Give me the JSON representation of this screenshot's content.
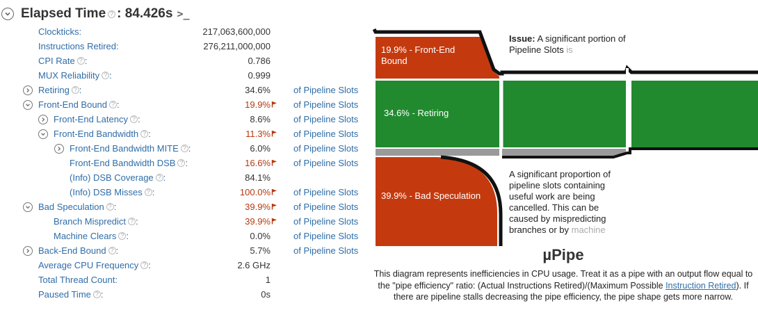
{
  "header": {
    "title": "Elapsed Time",
    "value": ": 84.426s"
  },
  "metrics": [
    {
      "name": "Clockticks:",
      "value": "217,063,600,000",
      "unit": "",
      "indent": 0,
      "expander": "none",
      "help": false,
      "warn": false
    },
    {
      "name": "Instructions Retired:",
      "value": "276,211,000,000",
      "unit": "",
      "indent": 0,
      "expander": "none",
      "help": false,
      "warn": false
    },
    {
      "name": "CPI Rate",
      "value": "0.786",
      "unit": "",
      "indent": 0,
      "expander": "none",
      "help": true,
      "warn": false
    },
    {
      "name": "MUX Reliability",
      "value": "0.999",
      "unit": "",
      "indent": 0,
      "expander": "none",
      "help": true,
      "warn": false
    },
    {
      "name": "Retiring",
      "value": "34.6%",
      "unit": "of Pipeline Slots",
      "indent": 0,
      "expander": "collapsed",
      "help": true,
      "warn": false
    },
    {
      "name": "Front-End Bound",
      "value": "19.9%",
      "unit": "of Pipeline Slots",
      "indent": 0,
      "expander": "expanded",
      "help": true,
      "warn": true
    },
    {
      "name": "Front-End Latency",
      "value": "8.6%",
      "unit": "of Pipeline Slots",
      "indent": 1,
      "expander": "collapsed",
      "help": true,
      "warn": false
    },
    {
      "name": "Front-End Bandwidth",
      "value": "11.3%",
      "unit": "of Pipeline Slots",
      "indent": 1,
      "expander": "expanded",
      "help": true,
      "warn": true
    },
    {
      "name": "Front-End Bandwidth MITE",
      "value": "6.0%",
      "unit": "of Pipeline Slots",
      "indent": 2,
      "expander": "collapsed",
      "help": true,
      "warn": false
    },
    {
      "name": "Front-End Bandwidth DSB",
      "value": "16.6%",
      "unit": "of Pipeline Slots",
      "indent": 2,
      "expander": "none",
      "help": true,
      "warn": true
    },
    {
      "name": "(Info) DSB Coverage",
      "value": "84.1%",
      "unit": "",
      "indent": 2,
      "expander": "none",
      "help": true,
      "warn": false
    },
    {
      "name": "(Info) DSB Misses",
      "value": "100.0%",
      "unit": "of Pipeline Slots",
      "indent": 2,
      "expander": "none",
      "help": true,
      "warn": true
    },
    {
      "name": "Bad Speculation",
      "value": "39.9%",
      "unit": "of Pipeline Slots",
      "indent": 0,
      "expander": "expanded",
      "help": true,
      "warn": true
    },
    {
      "name": "Branch Mispredict",
      "value": "39.9%",
      "unit": "of Pipeline Slots",
      "indent": 1,
      "expander": "none",
      "help": true,
      "warn": true
    },
    {
      "name": "Machine Clears",
      "value": "0.0%",
      "unit": "of Pipeline Slots",
      "indent": 1,
      "expander": "none",
      "help": true,
      "warn": false
    },
    {
      "name": "Back-End Bound",
      "value": "5.7%",
      "unit": "of Pipeline Slots",
      "indent": 0,
      "expander": "collapsed",
      "help": true,
      "warn": false
    },
    {
      "name": "Average CPU Frequency",
      "value": "2.6 GHz",
      "unit": "",
      "indent": 0,
      "expander": "none",
      "help": true,
      "warn": false
    },
    {
      "name": "Total Thread Count:",
      "value": "1",
      "unit": "",
      "indent": 0,
      "expander": "none",
      "help": false,
      "warn": false
    },
    {
      "name": "Paused Time",
      "value": "0s",
      "unit": "",
      "indent": 0,
      "expander": "none",
      "help": true,
      "warn": false
    }
  ],
  "pipe": {
    "front_end": {
      "label": "19.9% - Front-End Bound",
      "color": "#c43a0e"
    },
    "retiring": {
      "label": "34.6% - Retiring",
      "color": "#218a2f"
    },
    "bad_speculation": {
      "label": "39.9% - Bad Speculation",
      "color": "#c43a0e"
    },
    "back_end_color": "#9a9a9a",
    "issue_front_end": {
      "bold": "Issue:",
      "text": " A significant portion of Pipeline Slots ",
      "fade": "is"
    },
    "issue_bad_spec": {
      "text": "A significant proportion of pipeline slots containing useful work are being cancelled. This can be caused by mispredicting branches or by ",
      "fade": "machine"
    }
  },
  "upipe": {
    "title": "µPipe",
    "desc_before": "This diagram represents inefficiencies in CPU usage. Treat it as a pipe with an output flow equal to the \"pipe efficiency\" ratio: (Actual Instructions Retired)/(Maximum Possible ",
    "link": "Instruction Retired",
    "desc_after": "). If there are pipeline stalls decreasing the pipe efficiency, the pipe shape gets more narrow."
  },
  "help_glyph": "?",
  "colors": {
    "link": "#2f6da8",
    "warn": "#b5390f"
  }
}
